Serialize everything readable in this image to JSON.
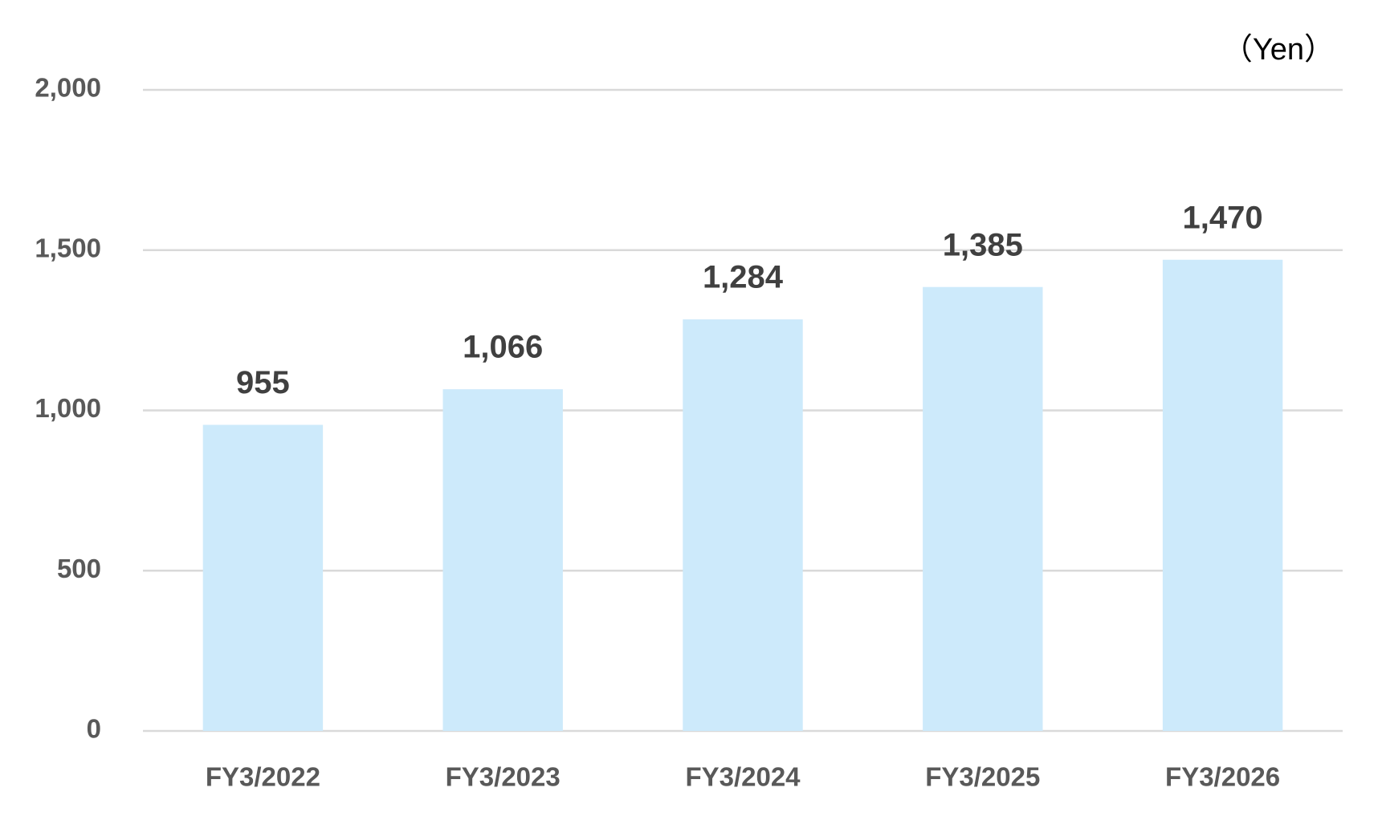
{
  "chart_data": {
    "type": "bar",
    "unit_label": "（Yen）",
    "categories": [
      "FY3/2022",
      "FY3/2023",
      "FY3/2024",
      "FY3/2025",
      "FY3/2026"
    ],
    "values": [
      955,
      1066,
      1284,
      1385,
      1470
    ],
    "value_labels": [
      "955",
      "1,066",
      "1,284",
      "1,385",
      "1,470"
    ],
    "color": "#cdeafb",
    "ylim": [
      0,
      2000
    ],
    "yticks": [
      0,
      500,
      {
        "value": 1000,
        "label": "1,000"
      },
      {
        "value": 1500,
        "label": "1,500"
      },
      {
        "value": 2000,
        "label": "2,000"
      }
    ],
    "grid": true
  }
}
